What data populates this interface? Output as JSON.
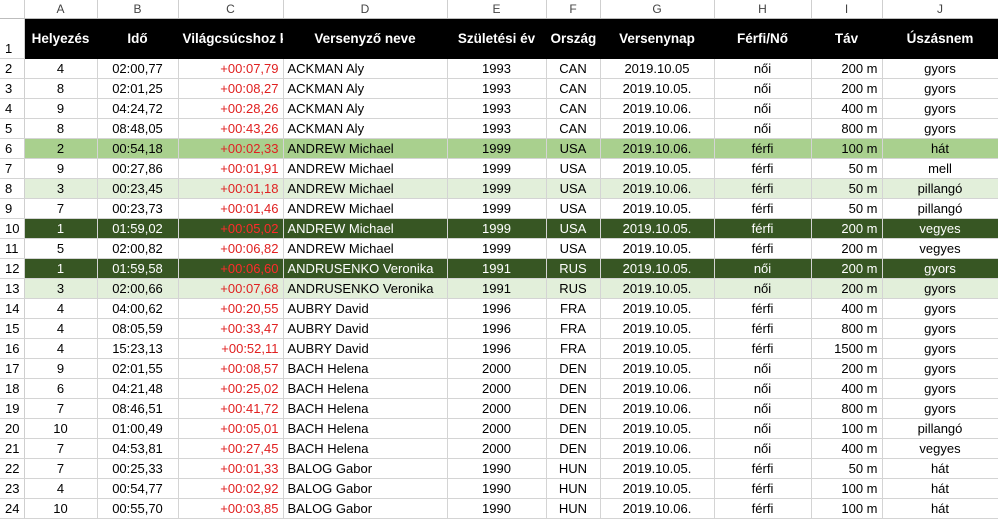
{
  "sheet": {
    "col_letters": [
      "A",
      "B",
      "C",
      "D",
      "E",
      "F",
      "G",
      "H",
      "I",
      "J"
    ],
    "headers": [
      "Helyezés",
      "Idő",
      "Világcsúcshoz képest",
      "Versenyző neve",
      "Születési év",
      "Ország",
      "Versenynap",
      "Férfi/Nő",
      "Táv",
      "Úszásnem"
    ],
    "rows": [
      {
        "n": "2",
        "hl": "",
        "c": [
          "4",
          "02:00,77",
          "+00:07,79",
          "ACKMAN Aly",
          "1993",
          "CAN",
          "2019.10.05",
          "női",
          "200 m",
          "gyors"
        ]
      },
      {
        "n": "3",
        "hl": "",
        "c": [
          "8",
          "02:01,25",
          "+00:08,27",
          "ACKMAN Aly",
          "1993",
          "CAN",
          "2019.10.05.",
          "női",
          "200 m",
          "gyors"
        ]
      },
      {
        "n": "4",
        "hl": "",
        "c": [
          "9",
          "04:24,72",
          "+00:28,26",
          "ACKMAN Aly",
          "1993",
          "CAN",
          "2019.10.06.",
          "női",
          "400 m",
          "gyors"
        ]
      },
      {
        "n": "5",
        "hl": "",
        "c": [
          "8",
          "08:48,05",
          "+00:43,26",
          "ACKMAN Aly",
          "1993",
          "CAN",
          "2019.10.06.",
          "női",
          "800 m",
          "gyors"
        ]
      },
      {
        "n": "6",
        "hl": "medium",
        "c": [
          "2",
          "00:54,18",
          "+00:02,33",
          "ANDREW Michael",
          "1999",
          "USA",
          "2019.10.06.",
          "férfi",
          "100 m",
          "hát"
        ]
      },
      {
        "n": "7",
        "hl": "",
        "c": [
          "9",
          "00:27,86",
          "+00:01,91",
          "ANDREW Michael",
          "1999",
          "USA",
          "2019.10.05.",
          "férfi",
          "50 m",
          "mell"
        ]
      },
      {
        "n": "8",
        "hl": "light",
        "c": [
          "3",
          "00:23,45",
          "+00:01,18",
          "ANDREW Michael",
          "1999",
          "USA",
          "2019.10.06.",
          "férfi",
          "50 m",
          "pillangó"
        ]
      },
      {
        "n": "9",
        "hl": "",
        "c": [
          "7",
          "00:23,73",
          "+00:01,46",
          "ANDREW Michael",
          "1999",
          "USA",
          "2019.10.05.",
          "férfi",
          "50 m",
          "pillangó"
        ]
      },
      {
        "n": "10",
        "hl": "dark",
        "c": [
          "1",
          "01:59,02",
          "+00:05,02",
          "ANDREW Michael",
          "1999",
          "USA",
          "2019.10.05.",
          "férfi",
          "200 m",
          "vegyes"
        ]
      },
      {
        "n": "11",
        "hl": "",
        "c": [
          "5",
          "02:00,82",
          "+00:06,82",
          "ANDREW Michael",
          "1999",
          "USA",
          "2019.10.05.",
          "férfi",
          "200 m",
          "vegyes"
        ]
      },
      {
        "n": "12",
        "hl": "dark",
        "c": [
          "1",
          "01:59,58",
          "+00:06,60",
          "ANDRUSENKO Veronika",
          "1991",
          "RUS",
          "2019.10.05.",
          "női",
          "200 m",
          "gyors"
        ]
      },
      {
        "n": "13",
        "hl": "light",
        "c": [
          "3",
          "02:00,66",
          "+00:07,68",
          "ANDRUSENKO Veronika",
          "1991",
          "RUS",
          "2019.10.05.",
          "női",
          "200 m",
          "gyors"
        ]
      },
      {
        "n": "14",
        "hl": "",
        "c": [
          "4",
          "04:00,62",
          "+00:20,55",
          "AUBRY David",
          "1996",
          "FRA",
          "2019.10.05.",
          "férfi",
          "400 m",
          "gyors"
        ]
      },
      {
        "n": "15",
        "hl": "",
        "c": [
          "4",
          "08:05,59",
          "+00:33,47",
          "AUBRY David",
          "1996",
          "FRA",
          "2019.10.05.",
          "férfi",
          "800 m",
          "gyors"
        ]
      },
      {
        "n": "16",
        "hl": "",
        "c": [
          "4",
          "15:23,13",
          "+00:52,11",
          "AUBRY David",
          "1996",
          "FRA",
          "2019.10.05.",
          "férfi",
          "1500 m",
          "gyors"
        ]
      },
      {
        "n": "17",
        "hl": "",
        "c": [
          "9",
          "02:01,55",
          "+00:08,57",
          "BACH Helena",
          "2000",
          "DEN",
          "2019.10.05.",
          "női",
          "200 m",
          "gyors"
        ]
      },
      {
        "n": "18",
        "hl": "",
        "c": [
          "6",
          "04:21,48",
          "+00:25,02",
          "BACH Helena",
          "2000",
          "DEN",
          "2019.10.06.",
          "női",
          "400 m",
          "gyors"
        ]
      },
      {
        "n": "19",
        "hl": "",
        "c": [
          "7",
          "08:46,51",
          "+00:41,72",
          "BACH Helena",
          "2000",
          "DEN",
          "2019.10.06.",
          "női",
          "800 m",
          "gyors"
        ]
      },
      {
        "n": "20",
        "hl": "",
        "c": [
          "10",
          "01:00,49",
          "+00:05,01",
          "BACH Helena",
          "2000",
          "DEN",
          "2019.10.05.",
          "női",
          "100 m",
          "pillangó"
        ]
      },
      {
        "n": "21",
        "hl": "",
        "c": [
          "7",
          "04:53,81",
          "+00:27,45",
          "BACH Helena",
          "2000",
          "DEN",
          "2019.10.06.",
          "női",
          "400 m",
          "vegyes"
        ]
      },
      {
        "n": "22",
        "hl": "",
        "c": [
          "7",
          "00:25,33",
          "+00:01,33",
          "BALOG Gabor",
          "1990",
          "HUN",
          "2019.10.05.",
          "férfi",
          "50 m",
          "hát"
        ]
      },
      {
        "n": "23",
        "hl": "",
        "c": [
          "4",
          "00:54,77",
          "+00:02,92",
          "BALOG Gabor",
          "1990",
          "HUN",
          "2019.10.05.",
          "férfi",
          "100 m",
          "hát"
        ]
      },
      {
        "n": "24",
        "hl": "",
        "c": [
          "10",
          "00:55,70",
          "+00:03,85",
          "BALOG Gabor",
          "1990",
          "HUN",
          "2019.10.06.",
          "férfi",
          "100 m",
          "hát"
        ]
      }
    ],
    "colors": {
      "header_bg": "#000000",
      "header_text": "#ffffff",
      "light_green": "#e2efda",
      "medium_green": "#a9d08e",
      "dark_green": "#375623",
      "delta_red": "#e02020",
      "gridline": "#d4d4d4"
    }
  }
}
